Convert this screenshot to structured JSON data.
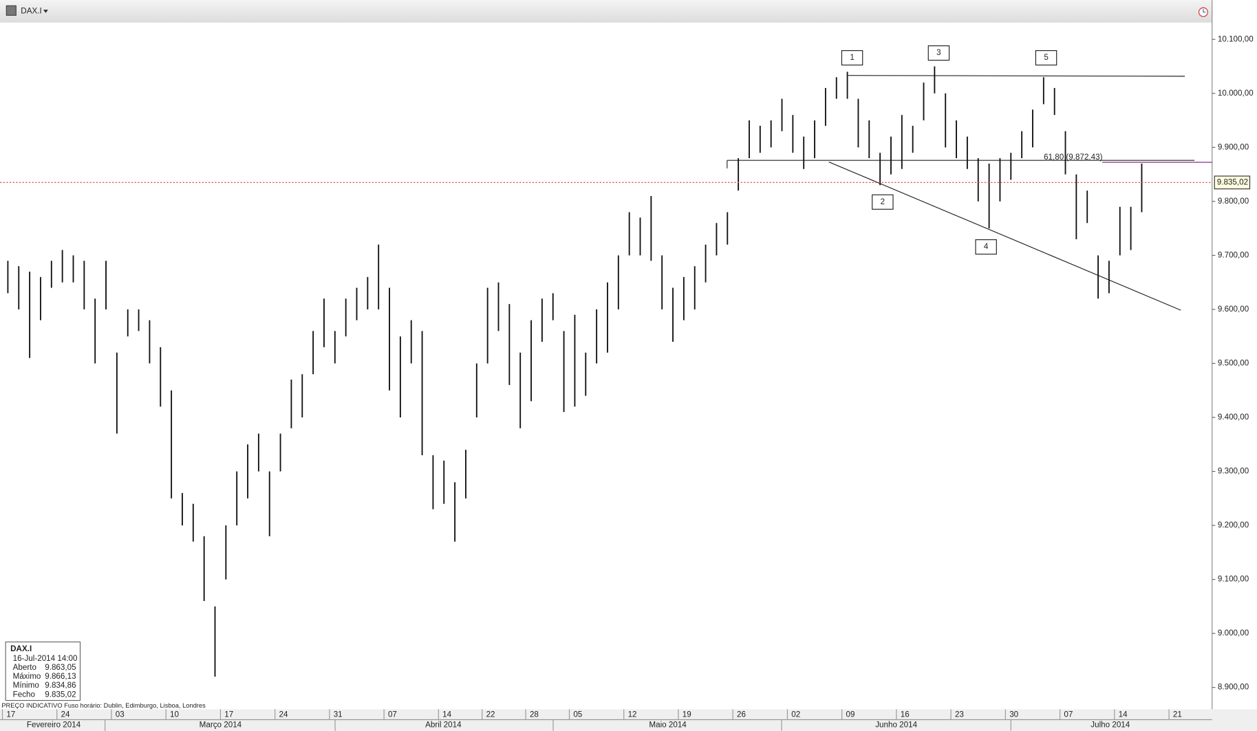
{
  "symbol_bar": {
    "symbol": "DAX.I"
  },
  "chart_data": {
    "type": "range-bar",
    "color": "#111111",
    "categories": [
      "17",
      null,
      null,
      null,
      null,
      "24",
      null,
      null,
      null,
      null,
      "03",
      null,
      null,
      null,
      null,
      "10",
      null,
      null,
      null,
      null,
      "17",
      null,
      null,
      null,
      null,
      "24",
      null,
      null,
      null,
      null,
      "31",
      null,
      null,
      null,
      null,
      "07",
      null,
      null,
      null,
      null,
      "14",
      null,
      null,
      null,
      "22",
      null,
      null,
      null,
      "28",
      null,
      null,
      null,
      "05",
      null,
      null,
      null,
      null,
      "12",
      null,
      null,
      null,
      null,
      "19",
      null,
      null,
      null,
      null,
      "26",
      null,
      null,
      null,
      null,
      "02",
      null,
      null,
      null,
      null,
      "09",
      null,
      null,
      null,
      null,
      "16",
      null,
      null,
      null,
      null,
      "23",
      null,
      null,
      null,
      null,
      "30",
      null,
      null,
      null,
      null,
      "07",
      null,
      null,
      null,
      null,
      "14",
      null,
      null,
      null,
      null,
      "21"
    ],
    "months": [
      "Fevereiro 2014",
      "Março 2014",
      "Abril 2014",
      "Maio 2014",
      "Junho 2014",
      "Julho 2014"
    ],
    "high": [
      9690,
      9680,
      9670,
      9660,
      9690,
      9710,
      9700,
      9690,
      9620,
      9690,
      9520,
      9600,
      9600,
      9580,
      9530,
      9450,
      9260,
      9240,
      9180,
      9050,
      9200,
      9300,
      9350,
      9370,
      9300,
      9370,
      9470,
      9480,
      9560,
      9620,
      9560,
      9620,
      9640,
      9660,
      9720,
      9640,
      9550,
      9580,
      9560,
      9330,
      9320,
      9280,
      9340,
      9500,
      9640,
      9650,
      9610,
      9520,
      9580,
      9620,
      9630,
      9560,
      9590,
      9520,
      9600,
      9650,
      9700,
      9780,
      9770,
      9810,
      9700,
      9640,
      9660,
      9680,
      9720,
      9760,
      9780,
      9880,
      9950,
      9940,
      9950,
      9990,
      9960,
      9920,
      9950,
      10010,
      10030,
      10040,
      9990,
      9950,
      9890,
      9920,
      9960,
      9940,
      10020,
      10050,
      10000,
      9950,
      9920,
      9880,
      9870,
      9880,
      9890,
      9930,
      9970,
      10030,
      10010,
      9930,
      9850,
      9820,
      9700,
      9690,
      9790,
      9790,
      9870,
      null,
      null,
      null
    ],
    "low": [
      9630,
      9600,
      9510,
      9580,
      9640,
      9650,
      9650,
      9600,
      9500,
      9600,
      9370,
      9550,
      9560,
      9500,
      9420,
      9250,
      9200,
      9170,
      9060,
      8920,
      9100,
      9200,
      9250,
      9300,
      9180,
      9300,
      9380,
      9400,
      9480,
      9530,
      9500,
      9550,
      9580,
      9600,
      9600,
      9450,
      9400,
      9500,
      9330,
      9230,
      9240,
      9170,
      9250,
      9400,
      9500,
      9560,
      9460,
      9380,
      9430,
      9540,
      9580,
      9410,
      9420,
      9440,
      9500,
      9520,
      9600,
      9700,
      9700,
      9690,
      9600,
      9540,
      9580,
      9600,
      9650,
      9700,
      9720,
      9820,
      9880,
      9890,
      9900,
      9930,
      9890,
      9860,
      9880,
      9940,
      9990,
      9990,
      9900,
      9880,
      9830,
      9850,
      9860,
      9890,
      9950,
      10000,
      9900,
      9880,
      9860,
      9800,
      9750,
      9800,
      9840,
      9880,
      9900,
      9980,
      9960,
      9850,
      9730,
      9760,
      9620,
      9630,
      9700,
      9710,
      9780,
      null,
      null,
      null
    ],
    "ylim": [
      8859.6,
      10172.7
    ],
    "yticks": [
      {
        "value": 8900,
        "label": "8.900,00"
      },
      {
        "value": 9000,
        "label": "9.000,00"
      },
      {
        "value": 9100,
        "label": "9.100,00"
      },
      {
        "value": 9200,
        "label": "9.200,00"
      },
      {
        "value": 9300,
        "label": "9.300,00"
      },
      {
        "value": 9400,
        "label": "9.400,00"
      },
      {
        "value": 9500,
        "label": "9.500,00"
      },
      {
        "value": 9600,
        "label": "9.600,00"
      },
      {
        "value": 9700,
        "label": "9.700,00"
      },
      {
        "value": 9800,
        "label": "9.800,00"
      },
      {
        "value": 9900,
        "label": "9.900,00"
      },
      {
        "value": 10000,
        "label": "10.000,00"
      },
      {
        "value": 10100,
        "label": "10.100,00"
      }
    ],
    "last_price": {
      "value": 9835.02,
      "label": "9.835,02"
    },
    "fib_level": {
      "value": 9872.43,
      "label": "61,80 (9.872,43)"
    },
    "wave_labels": [
      "1",
      "2",
      "3",
      "4",
      "5"
    ],
    "footer": "PREÇO INDICATIVO   Fuso horário: Dublin, Edimburgo, Lisboa, Londres"
  },
  "info_box": {
    "symbol": "DAX.I",
    "datetime": "16-Jul-2014 14:00",
    "rows": [
      [
        "Aberto",
        "9.863,05"
      ],
      [
        "Máximo",
        "9.866,13"
      ],
      [
        "Mínimo",
        "9.834,86"
      ],
      [
        "Fecho",
        "9.835,02"
      ]
    ]
  }
}
